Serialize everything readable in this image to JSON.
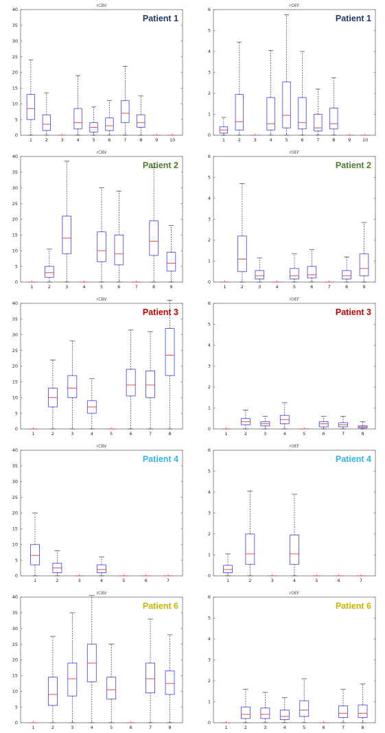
{
  "chart_data": [
    {
      "type": "box",
      "title": "rCBV",
      "patient_label": "Patient 1",
      "label_color": "#1f3864",
      "ylim": [
        0,
        40
      ],
      "yticks": [
        0,
        5,
        10,
        15,
        20,
        25,
        30,
        35,
        40
      ],
      "categories": [
        "1",
        "2",
        "3",
        "4",
        "5",
        "6",
        "7",
        "8",
        "9",
        "10"
      ],
      "boxes": [
        {
          "lw": 0,
          "q1": 5,
          "med": 8.5,
          "q3": 13,
          "uw": 24
        },
        {
          "lw": 0,
          "q1": 1.5,
          "med": 3.5,
          "q3": 6.5,
          "uw": 13.5
        },
        {
          "lw": 0,
          "q1": 0,
          "med": 0,
          "q3": 0,
          "uw": 0
        },
        {
          "lw": 0,
          "q1": 2,
          "med": 4,
          "q3": 8.5,
          "uw": 19
        },
        {
          "lw": 0,
          "q1": 1,
          "med": 2.5,
          "q3": 4,
          "uw": 9
        },
        {
          "lw": 0,
          "q1": 1.5,
          "med": 3,
          "q3": 5.5,
          "uw": 11
        },
        {
          "lw": 0,
          "q1": 4,
          "med": 7,
          "q3": 11,
          "uw": 22
        },
        {
          "lw": 0,
          "q1": 2.5,
          "med": 4,
          "q3": 6.5,
          "uw": 12.5
        },
        {
          "lw": 0,
          "q1": 0,
          "med": 0,
          "q3": 0,
          "uw": 0
        },
        {
          "lw": 0,
          "q1": 0,
          "med": 0,
          "q3": 0,
          "uw": 0
        }
      ]
    },
    {
      "type": "box",
      "title": "rOEF",
      "patient_label": "Patient 1",
      "label_color": "#1f3864",
      "ylim": [
        0,
        6
      ],
      "yticks": [
        0,
        1,
        2,
        3,
        4,
        5,
        6
      ],
      "categories": [
        "1",
        "2",
        "3",
        "4",
        "5",
        "6",
        "7",
        "8",
        "9",
        "10"
      ],
      "boxes": [
        {
          "lw": 0,
          "q1": 0.1,
          "med": 0.25,
          "q3": 0.4,
          "uw": 0.85
        },
        {
          "lw": 0,
          "q1": 0.25,
          "med": 0.65,
          "q3": 1.95,
          "uw": 4.45
        },
        {
          "lw": 0,
          "q1": 0,
          "med": 0,
          "q3": 0,
          "uw": 0
        },
        {
          "lw": 0,
          "q1": 0.25,
          "med": 0.55,
          "q3": 1.8,
          "uw": 4.05
        },
        {
          "lw": 0,
          "q1": 0.35,
          "med": 0.95,
          "q3": 2.55,
          "uw": 5.75
        },
        {
          "lw": 0,
          "q1": 0.3,
          "med": 0.6,
          "q3": 1.8,
          "uw": 4.0
        },
        {
          "lw": 0,
          "q1": 0.2,
          "med": 0.35,
          "q3": 1.0,
          "uw": 2.2
        },
        {
          "lw": 0,
          "q1": 0.3,
          "med": 0.55,
          "q3": 1.3,
          "uw": 2.75
        },
        {
          "lw": 0,
          "q1": 0,
          "med": 0,
          "q3": 0,
          "uw": 0
        },
        {
          "lw": 0,
          "q1": 0,
          "med": 0,
          "q3": 0,
          "uw": 0
        }
      ]
    },
    {
      "type": "box",
      "title": "rCBV",
      "patient_label": "Patient 2",
      "label_color": "#4e7a2b",
      "ylim": [
        0,
        40
      ],
      "yticks": [
        0,
        5,
        10,
        15,
        20,
        25,
        30,
        35,
        40
      ],
      "categories": [
        "1",
        "2",
        "3",
        "4",
        "5",
        "6",
        "7",
        "8",
        "9"
      ],
      "boxes": [
        {
          "lw": 0,
          "q1": 0,
          "med": 0,
          "q3": 0,
          "uw": 0
        },
        {
          "lw": 0,
          "q1": 1.5,
          "med": 3,
          "q3": 5,
          "uw": 10.5
        },
        {
          "lw": 0,
          "q1": 9,
          "med": 14,
          "q3": 21,
          "uw": 38.5
        },
        {
          "lw": 0,
          "q1": 0,
          "med": 0,
          "q3": 0,
          "uw": 0
        },
        {
          "lw": 0,
          "q1": 6.5,
          "med": 10,
          "q3": 16,
          "uw": 30
        },
        {
          "lw": 0,
          "q1": 5.5,
          "med": 9,
          "q3": 15,
          "uw": 29
        },
        {
          "lw": 0,
          "q1": 0,
          "med": 0,
          "q3": 0,
          "uw": 0
        },
        {
          "lw": 0,
          "q1": 8.5,
          "med": 13,
          "q3": 19.5,
          "uw": 36.5
        },
        {
          "lw": 0,
          "q1": 3.5,
          "med": 6,
          "q3": 9.5,
          "uw": 18
        }
      ]
    },
    {
      "type": "box",
      "title": "rOEF",
      "patient_label": "Patient 2",
      "label_color": "#4e7a2b",
      "ylim": [
        0,
        6
      ],
      "yticks": [
        0,
        1,
        2,
        3,
        4,
        5,
        6
      ],
      "categories": [
        "1",
        "2",
        "3",
        "4",
        "5",
        "6",
        "7",
        "8",
        "9"
      ],
      "boxes": [
        {
          "lw": 0,
          "q1": 0,
          "med": 0,
          "q3": 0,
          "uw": 0
        },
        {
          "lw": 0,
          "q1": 0.5,
          "med": 1.1,
          "q3": 2.2,
          "uw": 4.7
        },
        {
          "lw": 0,
          "q1": 0.15,
          "med": 0.3,
          "q3": 0.55,
          "uw": 1.15
        },
        {
          "lw": 0,
          "q1": 0,
          "med": 0,
          "q3": 0,
          "uw": 0
        },
        {
          "lw": 0,
          "q1": 0.15,
          "med": 0.3,
          "q3": 0.65,
          "uw": 1.35
        },
        {
          "lw": 0,
          "q1": 0.2,
          "med": 0.35,
          "q3": 0.75,
          "uw": 1.55
        },
        {
          "lw": 0,
          "q1": 0,
          "med": 0,
          "q3": 0,
          "uw": 0
        },
        {
          "lw": 0,
          "q1": 0.15,
          "med": 0.3,
          "q3": 0.55,
          "uw": 1.2
        },
        {
          "lw": 0,
          "q1": 0.3,
          "med": 0.65,
          "q3": 1.35,
          "uw": 2.85
        }
      ]
    },
    {
      "type": "box",
      "title": "rCBV",
      "patient_label": "Patient 3",
      "label_color": "#c00000",
      "ylim": [
        0,
        40
      ],
      "yticks": [
        0,
        5,
        10,
        15,
        20,
        25,
        30,
        35,
        40
      ],
      "categories": [
        "1",
        "2",
        "3",
        "4",
        "5",
        "6",
        "7",
        "8"
      ],
      "boxes": [
        {
          "lw": 0,
          "q1": 0,
          "med": 0,
          "q3": 0,
          "uw": 0
        },
        {
          "lw": 0,
          "q1": 7,
          "med": 10,
          "q3": 13,
          "uw": 22
        },
        {
          "lw": 0,
          "q1": 10,
          "med": 13,
          "q3": 17,
          "uw": 28
        },
        {
          "lw": 0,
          "q1": 5,
          "med": 7,
          "q3": 9,
          "uw": 16
        },
        {
          "lw": 0,
          "q1": 0,
          "med": 0,
          "q3": 0,
          "uw": 0
        },
        {
          "lw": 0,
          "q1": 10.5,
          "med": 14,
          "q3": 19,
          "uw": 31.5
        },
        {
          "lw": 0,
          "q1": 10,
          "med": 14,
          "q3": 18.5,
          "uw": 31
        },
        {
          "lw": 0,
          "q1": 17,
          "med": 23.5,
          "q3": 32,
          "uw": 41
        }
      ]
    },
    {
      "type": "box",
      "title": "rOEF",
      "patient_label": "Patient 3",
      "label_color": "#c00000",
      "ylim": [
        0,
        6
      ],
      "yticks": [
        0,
        1,
        2,
        3,
        4,
        5,
        6
      ],
      "categories": [
        "1",
        "2",
        "3",
        "4",
        "5",
        "6",
        "7",
        "8"
      ],
      "boxes": [
        {
          "lw": 0,
          "q1": 0,
          "med": 0,
          "q3": 0,
          "uw": 0
        },
        {
          "lw": 0,
          "q1": 0.2,
          "med": 0.35,
          "q3": 0.5,
          "uw": 0.9
        },
        {
          "lw": 0,
          "q1": 0.15,
          "med": 0.25,
          "q3": 0.35,
          "uw": 0.6
        },
        {
          "lw": 0,
          "q1": 0.25,
          "med": 0.45,
          "q3": 0.65,
          "uw": 1.25
        },
        {
          "lw": 0,
          "q1": 0,
          "med": 0,
          "q3": 0,
          "uw": 0
        },
        {
          "lw": 0,
          "q1": 0.1,
          "med": 0.25,
          "q3": 0.35,
          "uw": 0.6
        },
        {
          "lw": 0,
          "q1": 0.1,
          "med": 0.2,
          "q3": 0.3,
          "uw": 0.6
        },
        {
          "lw": 0,
          "q1": 0.05,
          "med": 0.1,
          "q3": 0.15,
          "uw": 0.35
        }
      ]
    },
    {
      "type": "box",
      "title": "rCBV",
      "patient_label": "Patient 4",
      "label_color": "#2fb5e6",
      "ylim": [
        0,
        40
      ],
      "yticks": [
        0,
        5,
        10,
        15,
        20,
        25,
        30,
        35,
        40
      ],
      "categories": [
        "1",
        "2",
        "3",
        "4",
        "5",
        "6",
        "7"
      ],
      "boxes": [
        {
          "lw": 0,
          "q1": 3.5,
          "med": 6.5,
          "q3": 10,
          "uw": 20
        },
        {
          "lw": 0,
          "q1": 1,
          "med": 2.5,
          "q3": 4,
          "uw": 8
        },
        {
          "lw": 0,
          "q1": 0,
          "med": 0,
          "q3": 0,
          "uw": 0
        },
        {
          "lw": 0,
          "q1": 1,
          "med": 2,
          "q3": 3.5,
          "uw": 6
        },
        {
          "lw": 0,
          "q1": 0,
          "med": 0,
          "q3": 0,
          "uw": 0
        },
        {
          "lw": 0,
          "q1": 0,
          "med": 0,
          "q3": 0,
          "uw": 0
        },
        {
          "lw": 0,
          "q1": 0,
          "med": 0,
          "q3": 0,
          "uw": 0
        }
      ]
    },
    {
      "type": "box",
      "title": "rOEF",
      "patient_label": "Patient 4",
      "label_color": "#2fb5e6",
      "ylim": [
        0,
        6
      ],
      "yticks": [
        0,
        1,
        2,
        3,
        4,
        5,
        6
      ],
      "categories": [
        "1",
        "2",
        "3",
        "4",
        "5",
        "6",
        "7"
      ],
      "boxes": [
        {
          "lw": 0,
          "q1": 0.15,
          "med": 0.3,
          "q3": 0.5,
          "uw": 1.05
        },
        {
          "lw": 0,
          "q1": 0.55,
          "med": 1.05,
          "q3": 2.0,
          "uw": 4.05
        },
        {
          "lw": 0,
          "q1": 0,
          "med": 0,
          "q3": 0,
          "uw": 0
        },
        {
          "lw": 0,
          "q1": 0.55,
          "med": 1.05,
          "q3": 1.95,
          "uw": 3.9
        },
        {
          "lw": 0,
          "q1": 0,
          "med": 0,
          "q3": 0,
          "uw": 0
        },
        {
          "lw": 0,
          "q1": 0,
          "med": 0,
          "q3": 0,
          "uw": 0
        },
        {
          "lw": 0,
          "q1": 0,
          "med": 0,
          "q3": 0,
          "uw": 0
        }
      ]
    },
    {
      "type": "box",
      "title": "rCBV",
      "patient_label": "Patient 6",
      "label_color": "#c9b400",
      "ylim": [
        0,
        40
      ],
      "yticks": [
        0,
        5,
        10,
        15,
        20,
        25,
        30,
        35,
        40
      ],
      "categories": [
        "1",
        "2",
        "3",
        "4",
        "5",
        "6",
        "7",
        "8"
      ],
      "boxes": [
        {
          "lw": 0,
          "q1": 0,
          "med": 0,
          "q3": 0,
          "uw": 0
        },
        {
          "lw": 0,
          "q1": 5.5,
          "med": 9,
          "q3": 14.5,
          "uw": 27.5
        },
        {
          "lw": 0,
          "q1": 8.5,
          "med": 14,
          "q3": 19,
          "uw": 35
        },
        {
          "lw": 0,
          "q1": 13,
          "med": 19,
          "q3": 25,
          "uw": 40.5
        },
        {
          "lw": 0,
          "q1": 7.5,
          "med": 10.5,
          "q3": 14.5,
          "uw": 25
        },
        {
          "lw": 0,
          "q1": 0,
          "med": 0,
          "q3": 0,
          "uw": 0
        },
        {
          "lw": 0,
          "q1": 9.5,
          "med": 14,
          "q3": 19,
          "uw": 33
        },
        {
          "lw": 0,
          "q1": 9,
          "med": 12.5,
          "q3": 16.5,
          "uw": 28
        }
      ]
    },
    {
      "type": "box",
      "title": "rOEF",
      "patient_label": "Patient 6",
      "label_color": "#c9b400",
      "ylim": [
        0,
        6
      ],
      "yticks": [
        0,
        1,
        2,
        3,
        4,
        5,
        6
      ],
      "categories": [
        "1",
        "2",
        "3",
        "4",
        "5",
        "6",
        "7",
        "8"
      ],
      "boxes": [
        {
          "lw": 0,
          "q1": 0,
          "med": 0,
          "q3": 0,
          "uw": 0
        },
        {
          "lw": 0,
          "q1": 0.2,
          "med": 0.4,
          "q3": 0.75,
          "uw": 1.6
        },
        {
          "lw": 0,
          "q1": 0.2,
          "med": 0.4,
          "q3": 0.7,
          "uw": 1.45
        },
        {
          "lw": 0,
          "q1": 0.15,
          "med": 0.3,
          "q3": 0.6,
          "uw": 1.2
        },
        {
          "lw": 0,
          "q1": 0.3,
          "med": 0.6,
          "q3": 1.05,
          "uw": 2.1
        },
        {
          "lw": 0,
          "q1": 0,
          "med": 0,
          "q3": 0,
          "uw": 0
        },
        {
          "lw": 0,
          "q1": 0.25,
          "med": 0.45,
          "q3": 0.8,
          "uw": 1.6
        },
        {
          "lw": 0,
          "q1": 0.25,
          "med": 0.45,
          "q3": 0.85,
          "uw": 1.85
        }
      ]
    }
  ]
}
